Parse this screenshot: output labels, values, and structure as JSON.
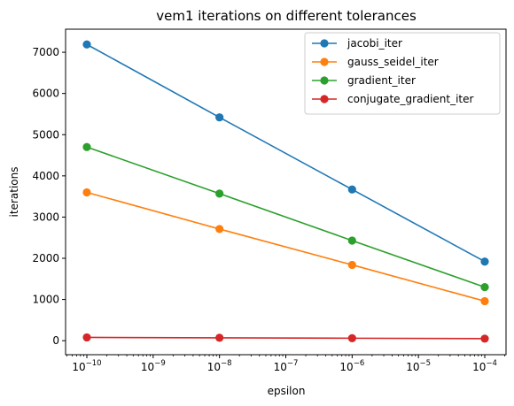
{
  "chart_data": {
    "type": "line",
    "title": "vem1 iterations on different tolerances",
    "xlabel": "epsilon",
    "ylabel": "iterations",
    "x_scale": "log",
    "x": [
      1e-10,
      1e-08,
      1e-06,
      0.0001
    ],
    "x_tick_base": "10",
    "x_tick_exponents": [
      "−10",
      "−9",
      "−8",
      "−7",
      "−6",
      "−5",
      "−4"
    ],
    "y_ticks": [
      "0",
      "1000",
      "2000",
      "3000",
      "4000",
      "5000",
      "6000",
      "7000"
    ],
    "ylim": [
      -340,
      7560
    ],
    "legend_position": "upper-right",
    "grid": false,
    "series": [
      {
        "name": "jacobi_iter",
        "color": "#1f77b4",
        "values": [
          7190,
          5420,
          3670,
          1920
        ]
      },
      {
        "name": "gauss_seidel_iter",
        "color": "#ff7f0e",
        "values": [
          3600,
          2710,
          1840,
          960
        ]
      },
      {
        "name": "gradient_iter",
        "color": "#2ca02c",
        "values": [
          4700,
          3570,
          2430,
          1300
        ]
      },
      {
        "name": "conjugate_gradient_iter",
        "color": "#d62728",
        "values": [
          80,
          70,
          60,
          50
        ]
      }
    ]
  }
}
